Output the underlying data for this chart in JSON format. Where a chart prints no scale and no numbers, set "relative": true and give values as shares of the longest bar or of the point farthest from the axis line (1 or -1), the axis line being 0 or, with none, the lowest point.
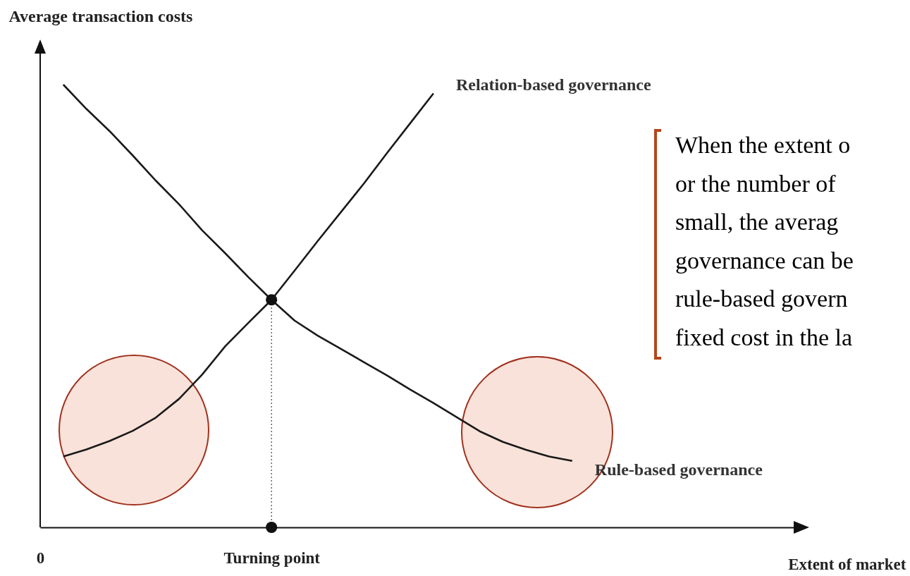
{
  "chart_data": {
    "type": "line",
    "relative": true,
    "xlabel": "Extent of market",
    "ylabel": "Average transaction costs",
    "categories": [
      "0",
      null,
      null,
      null,
      null,
      null,
      null,
      null,
      null,
      null,
      "Turning point",
      null,
      null,
      null,
      null,
      null,
      null,
      null,
      null,
      null,
      null,
      null,
      null,
      null,
      null,
      null,
      null,
      null,
      null,
      null,
      null,
      null,
      null,
      null
    ],
    "grid": false,
    "legend": false,
    "series": [
      {
        "name": "Relation-based governance",
        "type": "line",
        "color": "#1a1a1a",
        "values": [
          null,
          0.16,
          0.176,
          0.195,
          0.218,
          0.248,
          0.29,
          0.345,
          0.409,
          0.462,
          0.514,
          0.58,
          0.647,
          0.712,
          0.777,
          0.846,
          0.913,
          0.98,
          null,
          null,
          null,
          null,
          null,
          null,
          null,
          null,
          null,
          null,
          null,
          null,
          null,
          null,
          null,
          null
        ]
      },
      {
        "name": "Rule-based governance",
        "type": "line",
        "color": "#1a1a1a",
        "values": [
          null,
          1.0,
          0.945,
          0.895,
          0.84,
          0.783,
          0.73,
          0.671,
          0.619,
          0.565,
          0.514,
          0.467,
          0.433,
          0.403,
          0.373,
          0.343,
          0.311,
          0.281,
          0.249,
          0.217,
          0.193,
          0.175,
          0.16,
          0.15,
          null,
          null,
          null,
          null,
          null,
          null,
          null,
          null,
          null,
          null
        ]
      },
      {
        "type": "line",
        "line_style": "dotted",
        "color": "#666666",
        "x": [
          "Turning point",
          "Turning point"
        ],
        "values": [
          0,
          0.514
        ]
      },
      {
        "type": "scatter",
        "marker": "circle",
        "color": "#111111",
        "x": [
          "Turning point",
          "Turning point"
        ],
        "values": [
          0.514,
          0
        ]
      }
    ],
    "annotations": [
      "When the extent o",
      "or the number of",
      "small, the averag",
      "governance can be",
      "rule-based govern",
      "fixed cost in the la"
    ]
  }
}
